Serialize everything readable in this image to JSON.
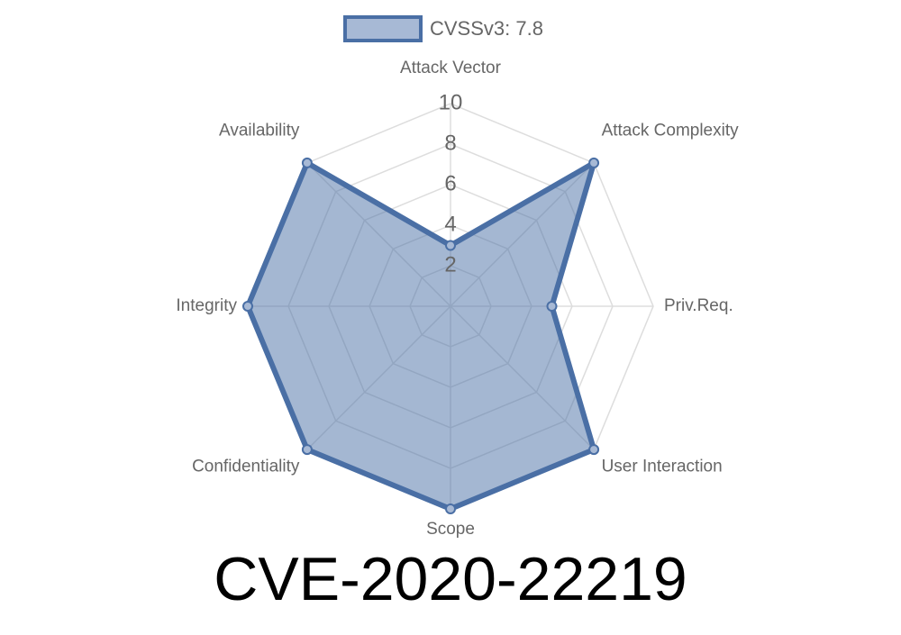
{
  "chart_data": {
    "type": "radar",
    "title": "CVE-2020-22219",
    "categories": [
      "Attack Vector",
      "Attack Complexity",
      "Priv.Req.",
      "User Interaction",
      "Scope",
      "Confidentiality",
      "Integrity",
      "Availability"
    ],
    "series": [
      {
        "name": "CVSSv3: 7.8",
        "color": "#4a6fa5",
        "values": [
          3,
          10,
          5,
          10,
          10,
          10,
          10,
          10
        ]
      }
    ],
    "rlim": [
      0,
      10
    ],
    "rticks": [
      2,
      4,
      6,
      8,
      10
    ],
    "grid": true,
    "legend": "top"
  }
}
